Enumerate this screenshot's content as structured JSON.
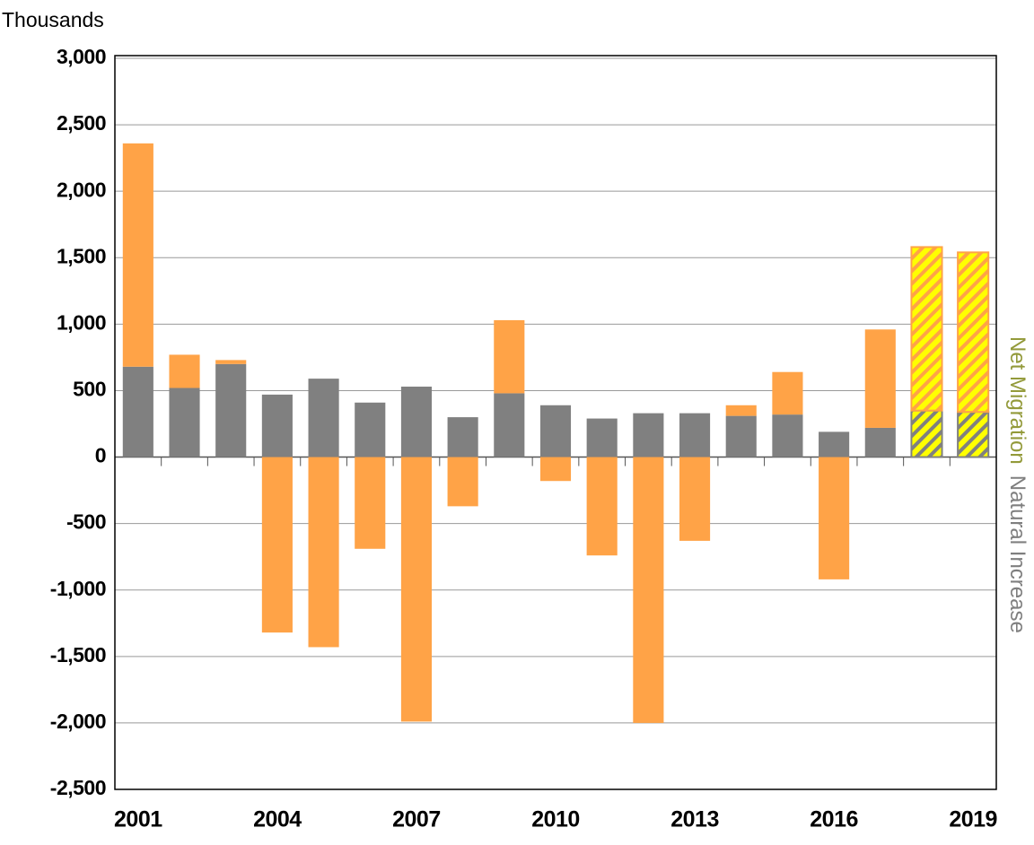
{
  "chart_data": {
    "type": "bar",
    "y_label": "Thousands",
    "categories": [
      "2001",
      null,
      null,
      "2004",
      null,
      null,
      "2007",
      null,
      null,
      "2010",
      null,
      null,
      "2013",
      null,
      null,
      "2016",
      null,
      null,
      "2019"
    ],
    "series": [
      {
        "name": "Natural Increase",
        "color": "#808080",
        "legend_color": "#7f7f7f",
        "values": [
          680,
          520,
          700,
          470,
          590,
          410,
          530,
          300,
          480,
          390,
          290,
          330,
          330,
          310,
          320,
          190,
          220,
          350,
          340
        ]
      },
      {
        "name": "Net Migration",
        "color": "#ffa347",
        "legend_color": "#939a3a",
        "values": [
          1680,
          250,
          30,
          -1320,
          -1430,
          -690,
          -1990,
          -370,
          550,
          -180,
          -740,
          -2000,
          -630,
          80,
          320,
          -920,
          740,
          1230,
          1200
        ]
      }
    ],
    "hatched": [
      false,
      false,
      false,
      false,
      false,
      false,
      false,
      false,
      false,
      false,
      false,
      false,
      false,
      false,
      false,
      false,
      false,
      true,
      true
    ],
    "hatch_color": "#ffff00",
    "ylim": [
      -2500,
      3000
    ],
    "yticks": [
      {
        "value": -2500,
        "label": "-2,500"
      },
      {
        "value": -2000,
        "label": "-2,000"
      },
      {
        "value": -1500,
        "label": "-1,500"
      },
      {
        "value": -1000,
        "label": "-1,000"
      },
      -500,
      0,
      500,
      {
        "value": 1000,
        "label": "1,000"
      },
      {
        "value": 1500,
        "label": "1,500"
      },
      {
        "value": 2000,
        "label": "2,000"
      },
      {
        "value": 2500,
        "label": "2,500"
      },
      {
        "value": 3000,
        "label": "3,000"
      }
    ],
    "grid": true,
    "legend": "right"
  }
}
